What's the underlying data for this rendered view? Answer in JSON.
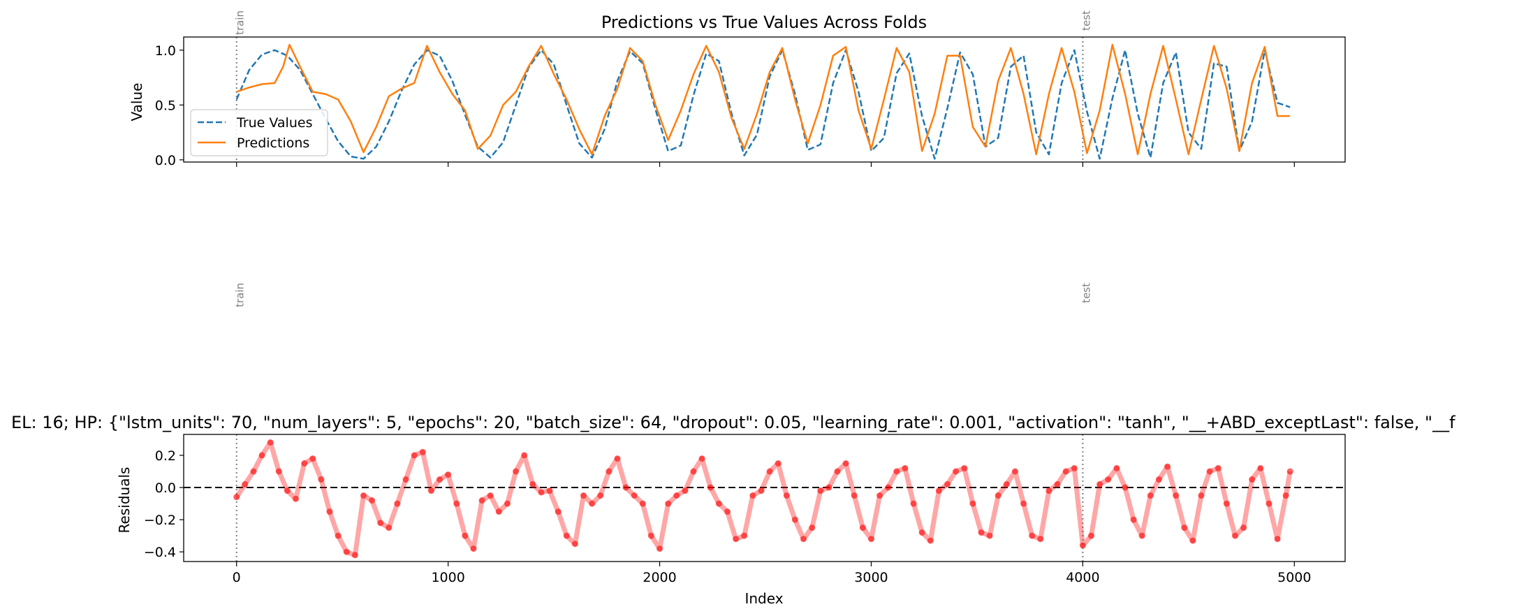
{
  "chart_data": [
    {
      "type": "line",
      "title": "Predictions vs True Values Across Folds",
      "xlabel": "",
      "ylabel": "Value",
      "xlim": [
        -250,
        5240
      ],
      "ylim": [
        -0.02,
        1.12
      ],
      "xticks": [
        0,
        1000,
        2000,
        3000,
        4000,
        5000
      ],
      "yticks": [
        0.0,
        0.5,
        1.0
      ],
      "ytick_labels": [
        "0.0",
        "0.5",
        "1.0"
      ],
      "grid": false,
      "legend": {
        "position": "lower-left",
        "entries": [
          "True Values",
          "Predictions"
        ]
      },
      "fold_markers": [
        {
          "x": 0,
          "label": "train"
        },
        {
          "x": 4000,
          "label": "test"
        }
      ],
      "series": [
        {
          "name": "True Values",
          "style": "dashed",
          "color": "#1f77b4",
          "x": [
            0,
            60,
            120,
            180,
            240,
            300,
            360,
            420,
            480,
            540,
            600,
            660,
            720,
            780,
            840,
            900,
            960,
            1020,
            1080,
            1140,
            1200,
            1260,
            1320,
            1380,
            1440,
            1500,
            1560,
            1620,
            1680,
            1740,
            1800,
            1860,
            1920,
            1980,
            2040,
            2100,
            2160,
            2220,
            2280,
            2340,
            2400,
            2460,
            2520,
            2580,
            2640,
            2700,
            2760,
            2820,
            2880,
            2940,
            3000,
            3060,
            3120,
            3180,
            3240,
            3300,
            3360,
            3420,
            3480,
            3540,
            3600,
            3660,
            3720,
            3780,
            3840,
            3900,
            3960,
            4020,
            4080,
            4140,
            4200,
            4260,
            4320,
            4380,
            4440,
            4500,
            4560,
            4620,
            4680,
            4740,
            4800,
            4860,
            4920,
            4980
          ],
          "y": [
            0.55,
            0.82,
            0.96,
            1.0,
            0.95,
            0.82,
            0.6,
            0.38,
            0.17,
            0.03,
            0.01,
            0.12,
            0.35,
            0.63,
            0.87,
            1.0,
            0.95,
            0.72,
            0.41,
            0.12,
            0.02,
            0.16,
            0.5,
            0.84,
            1.0,
            0.87,
            0.5,
            0.15,
            0.02,
            0.28,
            0.72,
            0.99,
            0.88,
            0.46,
            0.08,
            0.13,
            0.59,
            0.97,
            0.9,
            0.42,
            0.04,
            0.23,
            0.76,
            1.0,
            0.6,
            0.09,
            0.14,
            0.7,
            1.0,
            0.62,
            0.08,
            0.2,
            0.79,
            0.97,
            0.4,
            0.01,
            0.47,
            0.98,
            0.78,
            0.12,
            0.2,
            0.85,
            0.95,
            0.25,
            0.05,
            0.7,
            1.0,
            0.44,
            0.01,
            0.56,
            1.0,
            0.42,
            0.02,
            0.7,
            0.98,
            0.25,
            0.1,
            0.88,
            0.85,
            0.08,
            0.35,
            1.0,
            0.52,
            0.48
          ]
        },
        {
          "name": "Predictions",
          "style": "solid",
          "color": "#ff7f0e",
          "x": [
            0,
            60,
            120,
            180,
            220,
            250,
            300,
            360,
            420,
            480,
            540,
            600,
            660,
            720,
            780,
            840,
            900,
            960,
            1020,
            1080,
            1140,
            1200,
            1260,
            1320,
            1380,
            1440,
            1500,
            1560,
            1620,
            1680,
            1740,
            1800,
            1860,
            1920,
            1980,
            2040,
            2100,
            2160,
            2220,
            2280,
            2340,
            2400,
            2460,
            2520,
            2580,
            2640,
            2700,
            2760,
            2820,
            2880,
            2940,
            3000,
            3060,
            3120,
            3180,
            3240,
            3300,
            3360,
            3420,
            3480,
            3540,
            3600,
            3660,
            3720,
            3780,
            3840,
            3900,
            3960,
            4020,
            4080,
            4140,
            4200,
            4260,
            4320,
            4380,
            4440,
            4500,
            4560,
            4620,
            4680,
            4740,
            4800,
            4860,
            4920,
            4980
          ],
          "y": [
            0.62,
            0.66,
            0.69,
            0.7,
            0.85,
            1.05,
            0.85,
            0.62,
            0.6,
            0.55,
            0.35,
            0.07,
            0.3,
            0.58,
            0.65,
            0.7,
            1.04,
            0.8,
            0.6,
            0.45,
            0.1,
            0.22,
            0.5,
            0.62,
            0.85,
            1.04,
            0.78,
            0.55,
            0.28,
            0.05,
            0.4,
            0.65,
            1.02,
            0.9,
            0.5,
            0.18,
            0.45,
            0.78,
            1.04,
            0.8,
            0.38,
            0.1,
            0.42,
            0.8,
            1.02,
            0.55,
            0.15,
            0.5,
            0.95,
            1.03,
            0.45,
            0.1,
            0.55,
            1.02,
            0.8,
            0.08,
            0.42,
            0.95,
            0.95,
            0.3,
            0.12,
            0.72,
            1.02,
            0.6,
            0.05,
            0.6,
            1.02,
            0.62,
            0.06,
            0.45,
            1.05,
            0.6,
            0.05,
            0.6,
            1.04,
            0.55,
            0.05,
            0.55,
            1.04,
            0.65,
            0.08,
            0.7,
            1.03,
            0.4,
            0.4
          ]
        }
      ]
    },
    {
      "type": "scatter",
      "title": "EL: 16; HP: {\"lstm_units\": 70, \"num_layers\": 5, \"epochs\": 20, \"batch_size\": 64, \"dropout\": 0.05, \"learning_rate\": 0.001, \"activation\": \"tanh\", \"__+ABD_exceptLast\": false, \"__f",
      "xlabel": "Index",
      "ylabel": "Residuals",
      "xlim": [
        -250,
        5240
      ],
      "ylim": [
        -0.46,
        0.33
      ],
      "xticks": [
        0,
        1000,
        2000,
        3000,
        4000,
        5000
      ],
      "xtick_labels": [
        "0",
        "1000",
        "2000",
        "3000",
        "4000",
        "5000"
      ],
      "yticks": [
        -0.4,
        -0.2,
        0.0,
        0.2
      ],
      "ytick_labels": [
        "−0.4",
        "−0.2",
        "0.0",
        "0.2"
      ],
      "grid": false,
      "zero_line": 0.0,
      "fold_markers": [
        {
          "x": 0,
          "label": "train"
        },
        {
          "x": 4000,
          "label": "test"
        }
      ],
      "series": [
        {
          "name": "",
          "color": "#ff0000",
          "x": [
            0,
            40,
            80,
            120,
            160,
            200,
            240,
            280,
            320,
            360,
            400,
            440,
            480,
            520,
            560,
            600,
            640,
            680,
            720,
            760,
            800,
            840,
            880,
            920,
            960,
            1000,
            1040,
            1080,
            1120,
            1160,
            1200,
            1240,
            1280,
            1320,
            1360,
            1400,
            1440,
            1480,
            1520,
            1560,
            1600,
            1640,
            1680,
            1720,
            1760,
            1800,
            1840,
            1880,
            1920,
            1960,
            2000,
            2040,
            2080,
            2120,
            2160,
            2200,
            2240,
            2280,
            2320,
            2360,
            2400,
            2440,
            2480,
            2520,
            2560,
            2600,
            2640,
            2680,
            2720,
            2760,
            2800,
            2840,
            2880,
            2920,
            2960,
            3000,
            3040,
            3080,
            3120,
            3160,
            3200,
            3240,
            3280,
            3320,
            3360,
            3400,
            3440,
            3480,
            3520,
            3560,
            3600,
            3640,
            3680,
            3720,
            3760,
            3800,
            3840,
            3880,
            3920,
            3960,
            4000,
            4040,
            4080,
            4120,
            4160,
            4200,
            4240,
            4280,
            4320,
            4360,
            4400,
            4440,
            4480,
            4520,
            4560,
            4600,
            4640,
            4680,
            4720,
            4760,
            4800,
            4840,
            4880,
            4920,
            4960,
            4980
          ],
          "y": [
            -0.06,
            0.02,
            0.1,
            0.2,
            0.28,
            0.1,
            -0.02,
            -0.07,
            0.15,
            0.18,
            0.05,
            -0.15,
            -0.3,
            -0.4,
            -0.42,
            -0.05,
            -0.08,
            -0.22,
            -0.25,
            -0.1,
            0.05,
            0.2,
            0.22,
            -0.02,
            0.05,
            0.08,
            -0.1,
            -0.3,
            -0.38,
            -0.08,
            -0.05,
            -0.15,
            -0.1,
            0.1,
            0.2,
            0.02,
            -0.03,
            -0.02,
            -0.15,
            -0.3,
            -0.35,
            -0.05,
            -0.1,
            -0.05,
            0.1,
            0.18,
            0.0,
            -0.05,
            -0.1,
            -0.3,
            -0.38,
            -0.1,
            -0.05,
            -0.02,
            0.1,
            0.18,
            0.0,
            -0.1,
            -0.15,
            -0.32,
            -0.3,
            -0.05,
            -0.02,
            0.1,
            0.15,
            -0.05,
            -0.2,
            -0.32,
            -0.25,
            -0.02,
            0.0,
            0.1,
            0.15,
            -0.05,
            -0.25,
            -0.32,
            -0.05,
            0.0,
            0.1,
            0.12,
            -0.1,
            -0.28,
            -0.33,
            -0.02,
            0.02,
            0.1,
            0.12,
            -0.1,
            -0.28,
            -0.3,
            -0.05,
            0.02,
            0.1,
            -0.1,
            -0.3,
            -0.32,
            -0.02,
            0.02,
            0.1,
            0.12,
            -0.36,
            -0.3,
            0.02,
            0.05,
            0.12,
            0.0,
            -0.2,
            -0.3,
            -0.05,
            0.05,
            0.13,
            -0.05,
            -0.25,
            -0.33,
            -0.05,
            0.1,
            0.12,
            -0.1,
            -0.3,
            -0.25,
            0.05,
            0.12,
            -0.1,
            -0.32,
            -0.05,
            0.1
          ]
        }
      ]
    }
  ]
}
